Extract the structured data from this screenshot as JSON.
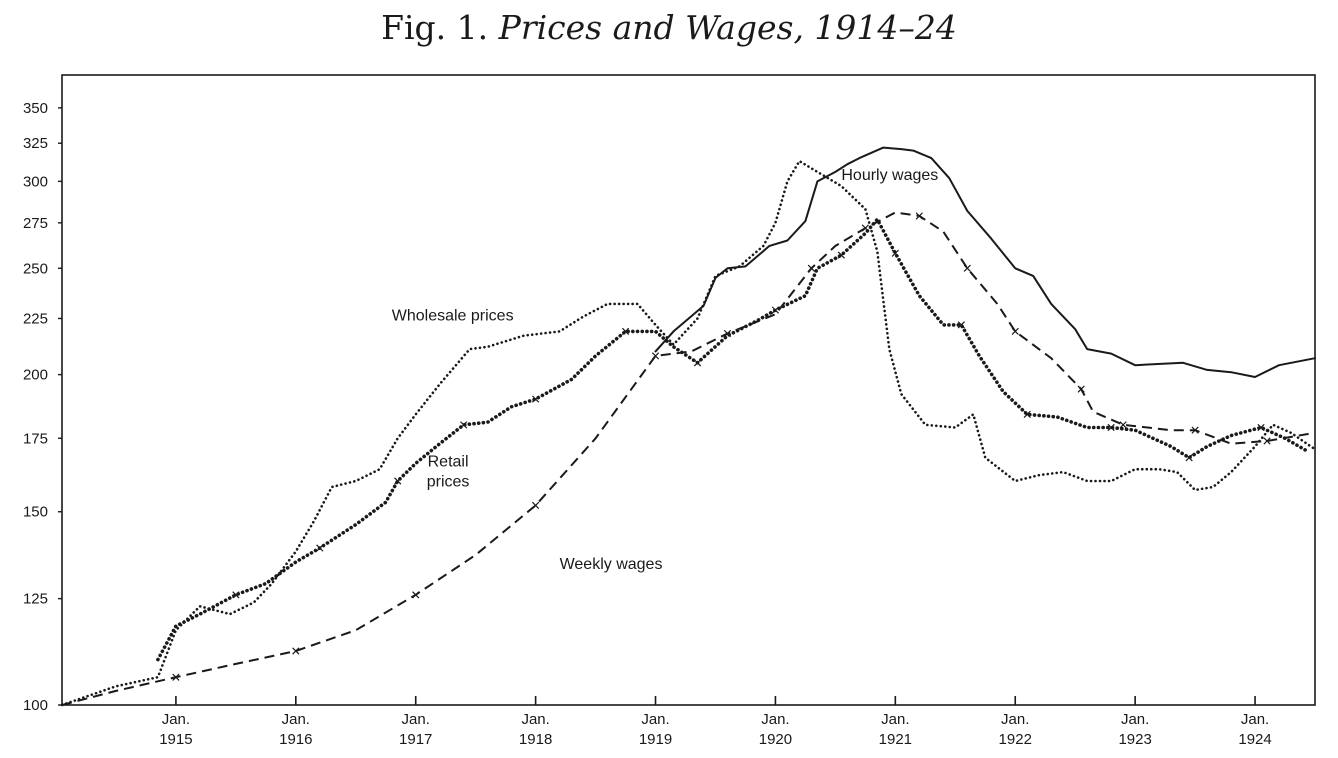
{
  "chart_data": {
    "type": "line",
    "title_prefix": "Fig. 1.",
    "title_main": "Prices and Wages, 1914–24",
    "y_scale": "log",
    "ylim": [
      100,
      375
    ],
    "xlim": [
      1914.05,
      1924.5
    ],
    "yticks": [
      100,
      125,
      150,
      175,
      200,
      225,
      250,
      275,
      300,
      325,
      350
    ],
    "xticks": [
      {
        "x": 1915,
        "top": "Jan.",
        "bottom": "1915"
      },
      {
        "x": 1916,
        "top": "Jan.",
        "bottom": "1916"
      },
      {
        "x": 1917,
        "top": "Jan.",
        "bottom": "1917"
      },
      {
        "x": 1918,
        "top": "Jan.",
        "bottom": "1918"
      },
      {
        "x": 1919,
        "top": "Jan.",
        "bottom": "1919"
      },
      {
        "x": 1920,
        "top": "Jan.",
        "bottom": "1920"
      },
      {
        "x": 1921,
        "top": "Jan.",
        "bottom": "1921"
      },
      {
        "x": 1922,
        "top": "Jan.",
        "bottom": "1922"
      },
      {
        "x": 1923,
        "top": "Jan.",
        "bottom": "1923"
      },
      {
        "x": 1924,
        "top": "Jan.",
        "bottom": "1924"
      }
    ],
    "series": [
      {
        "name": "Hourly wages",
        "label_lines": [
          "Hourly wages"
        ],
        "label_pos": [
          1920.55,
          301
        ],
        "style": "solid",
        "points": [
          [
            1919.0,
            210
          ],
          [
            1919.15,
            219
          ],
          [
            1919.4,
            231
          ],
          [
            1919.5,
            245
          ],
          [
            1919.6,
            250
          ],
          [
            1919.75,
            251
          ],
          [
            1919.95,
            262
          ],
          [
            1920.1,
            265
          ],
          [
            1920.25,
            276
          ],
          [
            1920.35,
            300
          ],
          [
            1920.5,
            306
          ],
          [
            1920.6,
            311
          ],
          [
            1920.7,
            315
          ],
          [
            1920.9,
            322
          ],
          [
            1921.05,
            321
          ],
          [
            1921.15,
            320
          ],
          [
            1921.3,
            315
          ],
          [
            1921.45,
            302
          ],
          [
            1921.6,
            282
          ],
          [
            1921.8,
            266
          ],
          [
            1922.0,
            250
          ],
          [
            1922.15,
            246
          ],
          [
            1922.3,
            232
          ],
          [
            1922.5,
            220
          ],
          [
            1922.6,
            211
          ],
          [
            1922.8,
            209
          ],
          [
            1923.0,
            204
          ],
          [
            1923.4,
            205
          ],
          [
            1923.6,
            202
          ],
          [
            1923.8,
            201
          ],
          [
            1924.0,
            199
          ],
          [
            1924.2,
            204
          ],
          [
            1924.5,
            207
          ]
        ]
      },
      {
        "name": "Weekly wages",
        "label_lines": [
          "Weekly wages"
        ],
        "label_pos": [
          1918.2,
          133
        ],
        "style": "dash",
        "points": [
          [
            1914.05,
            100
          ],
          [
            1914.5,
            103
          ],
          [
            1915.0,
            106
          ],
          [
            1915.5,
            109
          ],
          [
            1916.0,
            112
          ],
          [
            1916.5,
            117
          ],
          [
            1917.0,
            126
          ],
          [
            1917.5,
            137
          ],
          [
            1918.0,
            152
          ],
          [
            1918.5,
            175
          ],
          [
            1919.0,
            208
          ],
          [
            1919.3,
            210
          ],
          [
            1919.6,
            218
          ],
          [
            1920.0,
            227
          ],
          [
            1920.3,
            250
          ],
          [
            1920.5,
            262
          ],
          [
            1920.75,
            272
          ],
          [
            1921.0,
            281
          ],
          [
            1921.2,
            279
          ],
          [
            1921.4,
            270
          ],
          [
            1921.6,
            250
          ],
          [
            1921.85,
            232
          ],
          [
            1922.0,
            219
          ],
          [
            1922.3,
            207
          ],
          [
            1922.55,
            194
          ],
          [
            1922.65,
            185
          ],
          [
            1922.9,
            180
          ],
          [
            1923.3,
            178
          ],
          [
            1923.5,
            178
          ],
          [
            1923.8,
            173
          ],
          [
            1924.1,
            174
          ],
          [
            1924.5,
            177
          ]
        ]
      },
      {
        "name": "Retail prices",
        "label_lines": [
          "Retail",
          "prices"
        ],
        "label_pos": [
          1917.27,
          165
        ],
        "style": "crossed",
        "points": [
          [
            1914.85,
            110
          ],
          [
            1915.0,
            118
          ],
          [
            1915.2,
            121
          ],
          [
            1915.5,
            126
          ],
          [
            1915.75,
            129
          ],
          [
            1916.0,
            135
          ],
          [
            1916.2,
            139
          ],
          [
            1916.5,
            146
          ],
          [
            1916.75,
            153
          ],
          [
            1916.85,
            160
          ],
          [
            1917.0,
            166
          ],
          [
            1917.2,
            173
          ],
          [
            1917.4,
            180
          ],
          [
            1917.6,
            181
          ],
          [
            1917.8,
            187
          ],
          [
            1918.0,
            190
          ],
          [
            1918.3,
            198
          ],
          [
            1918.5,
            208
          ],
          [
            1918.75,
            219
          ],
          [
            1919.0,
            219
          ],
          [
            1919.15,
            212
          ],
          [
            1919.35,
            205
          ],
          [
            1919.6,
            217
          ],
          [
            1919.85,
            224
          ],
          [
            1920.0,
            229
          ],
          [
            1920.25,
            236
          ],
          [
            1920.35,
            250
          ],
          [
            1920.55,
            257
          ],
          [
            1920.75,
            269
          ],
          [
            1920.85,
            277
          ],
          [
            1921.0,
            258
          ],
          [
            1921.2,
            236
          ],
          [
            1921.4,
            222
          ],
          [
            1921.55,
            222
          ],
          [
            1921.7,
            208
          ],
          [
            1921.9,
            193
          ],
          [
            1922.1,
            184
          ],
          [
            1922.35,
            183
          ],
          [
            1922.6,
            179
          ],
          [
            1922.8,
            179
          ],
          [
            1923.0,
            178
          ],
          [
            1923.3,
            172
          ],
          [
            1923.45,
            168
          ],
          [
            1923.6,
            172
          ],
          [
            1923.8,
            176
          ],
          [
            1924.05,
            179
          ],
          [
            1924.25,
            175
          ],
          [
            1924.45,
            170
          ]
        ]
      },
      {
        "name": "Wholesale prices",
        "label_lines": [
          "Wholesale prices"
        ],
        "label_pos": [
          1916.8,
          224
        ],
        "style": "dotted",
        "points": [
          [
            1914.05,
            100
          ],
          [
            1914.5,
            104
          ],
          [
            1914.85,
            106
          ],
          [
            1915.0,
            117
          ],
          [
            1915.2,
            123
          ],
          [
            1915.45,
            121
          ],
          [
            1915.65,
            124
          ],
          [
            1915.8,
            129
          ],
          [
            1916.0,
            138
          ],
          [
            1916.15,
            147
          ],
          [
            1916.3,
            158
          ],
          [
            1916.5,
            160
          ],
          [
            1916.7,
            164
          ],
          [
            1916.85,
            175
          ],
          [
            1917.0,
            184
          ],
          [
            1917.2,
            196
          ],
          [
            1917.45,
            211
          ],
          [
            1917.6,
            212
          ],
          [
            1917.9,
            217
          ],
          [
            1918.2,
            219
          ],
          [
            1918.4,
            226
          ],
          [
            1918.6,
            232
          ],
          [
            1918.85,
            232
          ],
          [
            1919.0,
            222
          ],
          [
            1919.15,
            213
          ],
          [
            1919.35,
            225
          ],
          [
            1919.5,
            246
          ],
          [
            1919.7,
            251
          ],
          [
            1919.9,
            262
          ],
          [
            1920.0,
            275
          ],
          [
            1920.1,
            300
          ],
          [
            1920.2,
            313
          ],
          [
            1920.35,
            306
          ],
          [
            1920.55,
            297
          ],
          [
            1920.75,
            283
          ],
          [
            1920.85,
            259
          ],
          [
            1920.95,
            211
          ],
          [
            1921.05,
            192
          ],
          [
            1921.25,
            180
          ],
          [
            1921.5,
            179
          ],
          [
            1921.65,
            184
          ],
          [
            1921.75,
            168
          ],
          [
            1922.0,
            160
          ],
          [
            1922.2,
            162
          ],
          [
            1922.4,
            163
          ],
          [
            1922.6,
            160
          ],
          [
            1922.8,
            160
          ],
          [
            1923.0,
            164
          ],
          [
            1923.2,
            164
          ],
          [
            1923.35,
            163
          ],
          [
            1923.5,
            157
          ],
          [
            1923.65,
            158
          ],
          [
            1923.8,
            163
          ],
          [
            1924.0,
            172
          ],
          [
            1924.15,
            180
          ],
          [
            1924.3,
            177
          ],
          [
            1924.5,
            171
          ]
        ]
      }
    ]
  }
}
